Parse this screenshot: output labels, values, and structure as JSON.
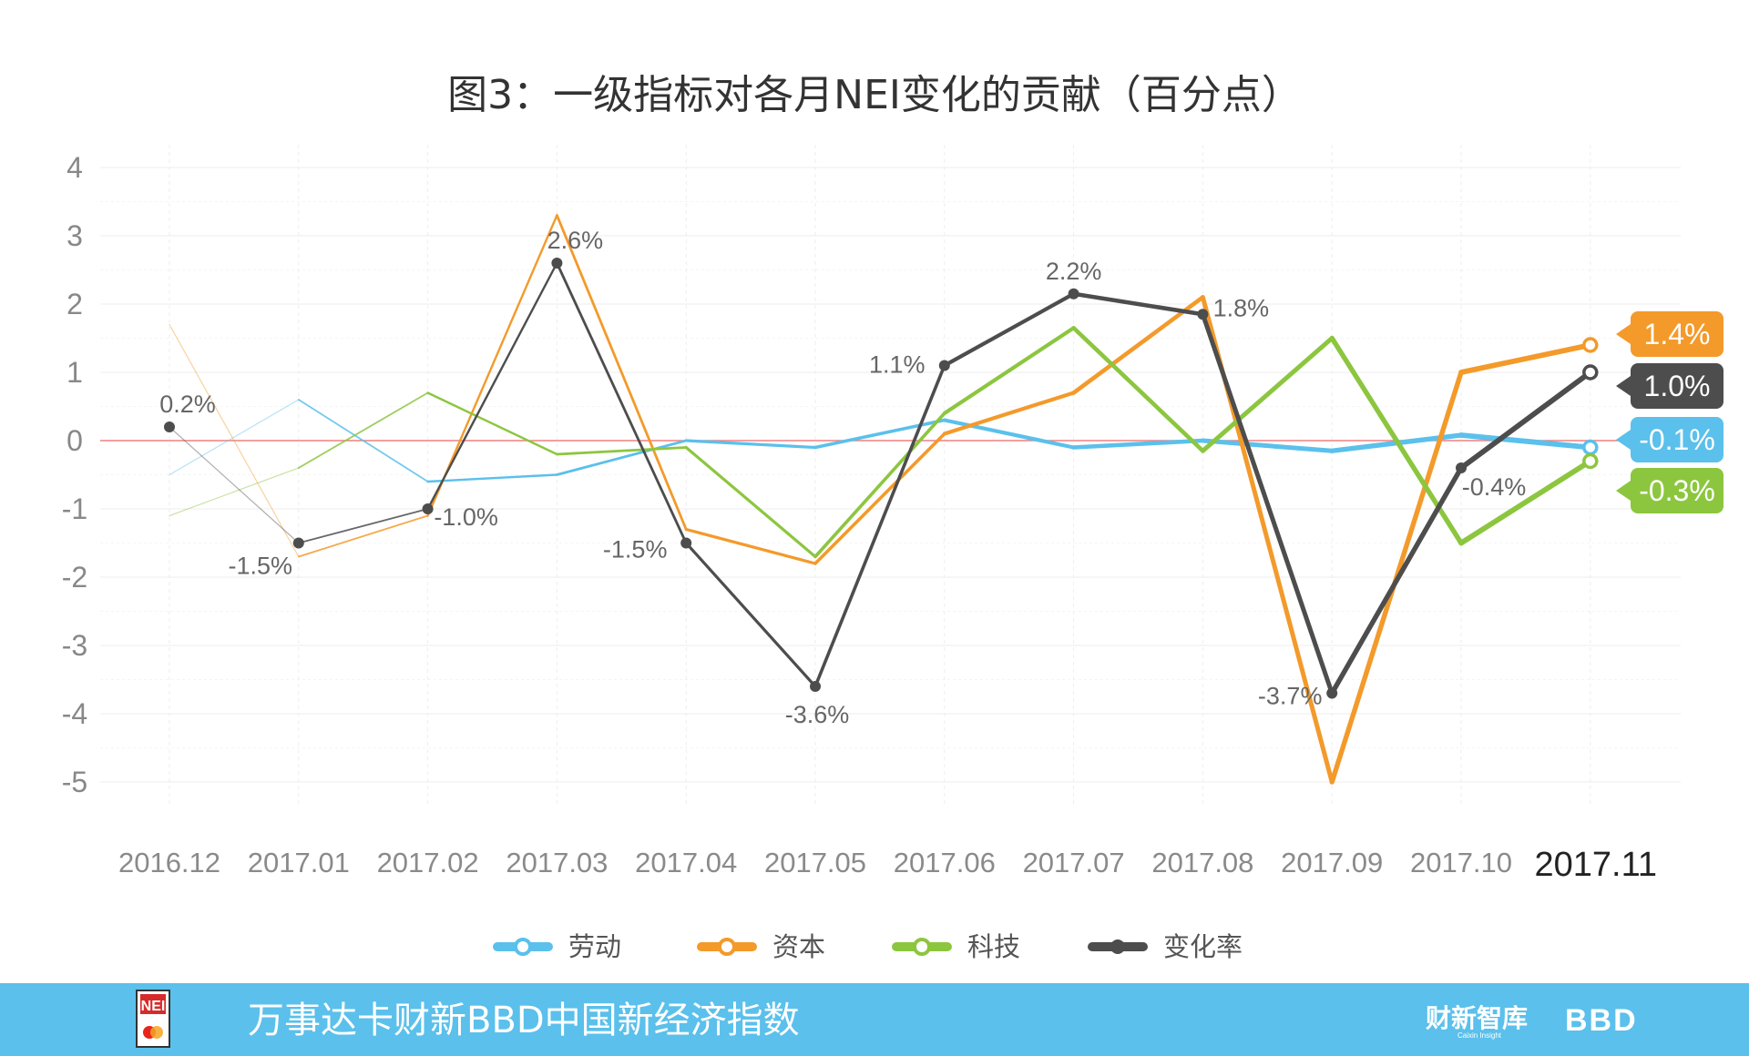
{
  "chart_data": {
    "type": "line",
    "title": "图3：一级指标对各月NEI变化的贡献（百分点）",
    "categories": [
      "2016.12",
      "2017.01",
      "2017.02",
      "2017.03",
      "2017.04",
      "2017.05",
      "2017.06",
      "2017.07",
      "2017.08",
      "2017.09",
      "2017.10",
      "2017.11"
    ],
    "ylim": [
      -5,
      4
    ],
    "yticks": [
      4,
      3,
      2,
      1,
      0,
      -1,
      -2,
      -3,
      -4,
      -5
    ],
    "grid": true,
    "legend_position": "bottom",
    "series": [
      {
        "name": "劳动",
        "color": "#5bc0eb",
        "values": [
          -0.5,
          0.6,
          -0.6,
          -0.5,
          0.0,
          -0.1,
          0.3,
          -0.1,
          0.0,
          -0.15,
          0.08,
          -0.1
        ]
      },
      {
        "name": "资本",
        "color": "#f39a2b",
        "values": [
          1.7,
          -1.7,
          -1.1,
          3.3,
          -1.3,
          -1.8,
          0.1,
          0.7,
          2.1,
          -5.0,
          1.0,
          1.4
        ]
      },
      {
        "name": "科技",
        "color": "#8cc63f",
        "values": [
          -1.1,
          -0.4,
          0.7,
          -0.2,
          -0.1,
          -1.7,
          0.4,
          1.65,
          -0.15,
          1.5,
          -1.5,
          -0.3
        ]
      },
      {
        "name": "变化率",
        "color": "#4d4d4d",
        "values": [
          0.2,
          -1.5,
          -1.0,
          2.6,
          -1.5,
          -3.6,
          1.1,
          2.15,
          1.85,
          -3.7,
          -0.4,
          1.0
        ]
      }
    ],
    "change_rate_labels": [
      "0.2%",
      "-1.5%",
      "-1.0%",
      "2.6%",
      "-1.5%",
      "-3.6%",
      "1.1%",
      "2.2%",
      "1.8%",
      "-3.7%",
      "-0.4%",
      ""
    ],
    "end_tags": [
      {
        "series": "资本",
        "text": "1.4%"
      },
      {
        "series": "变化率",
        "text": "1.0%"
      },
      {
        "series": "劳动",
        "text": "-0.1%"
      },
      {
        "series": "科技",
        "text": "-0.3%"
      }
    ]
  },
  "footer": {
    "text": "万事达卡财新BBD中国新经济指数",
    "logo_left_text": "NEI",
    "logo_right_cn": "财新智库",
    "logo_right_en": "Caixin Insight",
    "logo_bbd": "BBD",
    "background": "#5bc0eb"
  }
}
